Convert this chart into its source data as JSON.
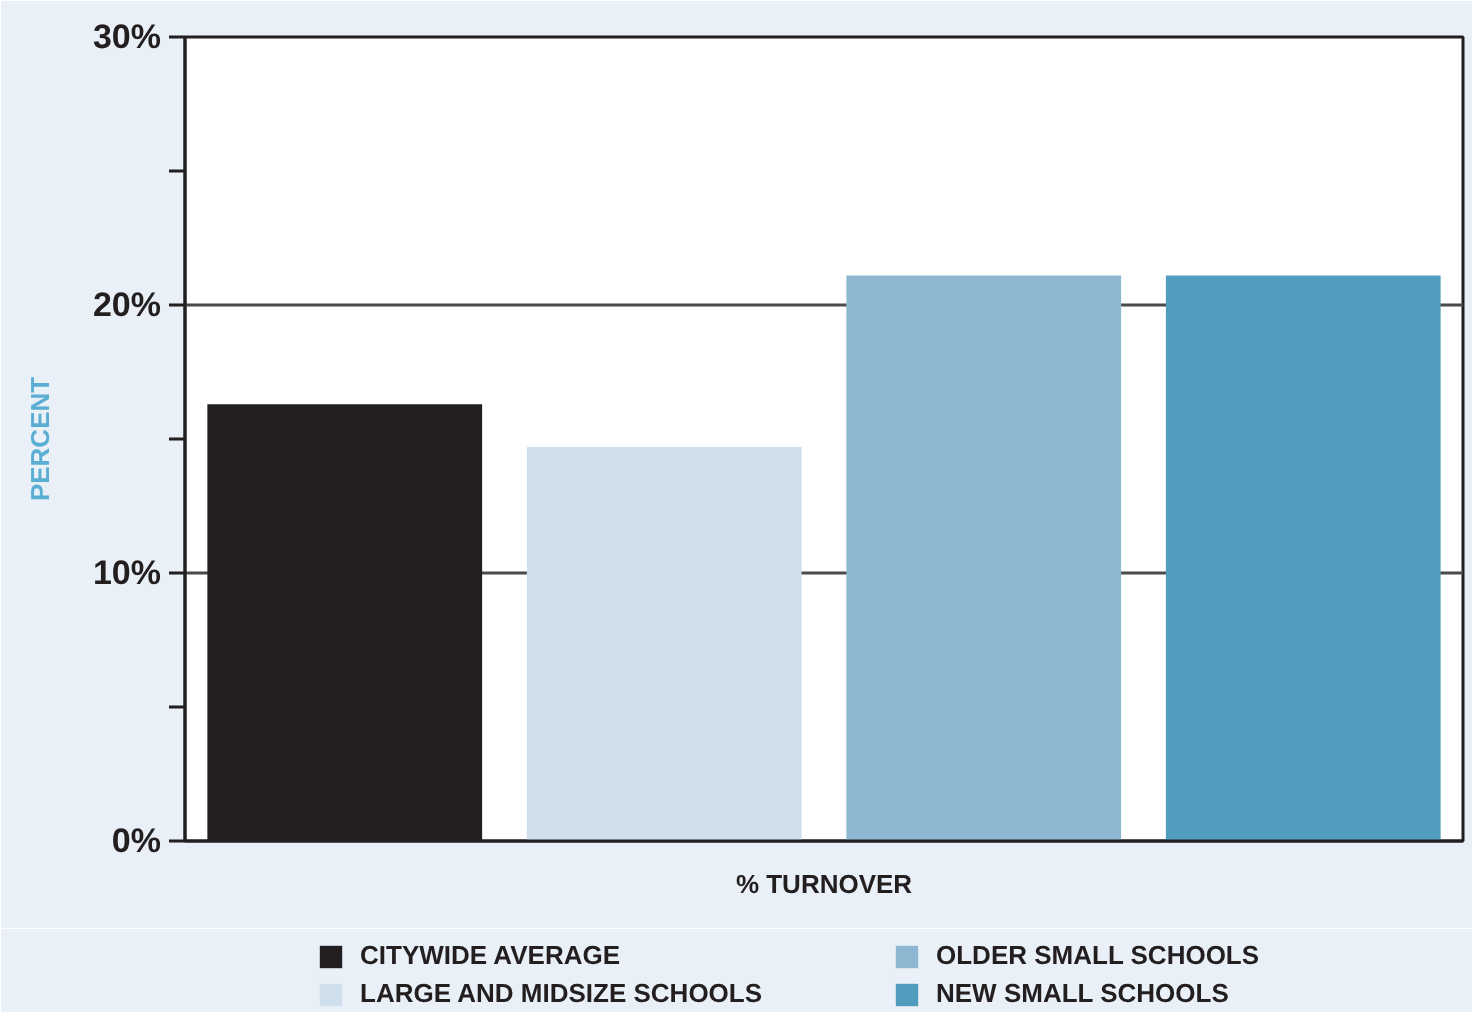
{
  "chart_data": {
    "type": "bar",
    "categories": [
      "% TURNOVER"
    ],
    "ylabel": "PERCENT",
    "series": [
      {
        "name": "CITYWIDE AVERAGE",
        "color": "#231f20",
        "values": [
          16.3
        ]
      },
      {
        "name": "LARGE AND MIDSIZE SCHOOLS",
        "color": "#cfe0ec",
        "values": [
          14.7
        ]
      },
      {
        "name": "OLDER SMALL SCHOOLS",
        "color": "#8eb8d2",
        "values": [
          21.1
        ]
      },
      {
        "name": "NEW SMALL SCHOOLS",
        "color": "#529dbf",
        "values": [
          21.1
        ]
      }
    ],
    "ylim": [
      0,
      30
    ],
    "yticks": [
      {
        "value": 0,
        "label": "0%"
      },
      {
        "value": 5,
        "label": null
      },
      {
        "value": 10,
        "label": "10%"
      },
      {
        "value": 15,
        "label": null
      },
      {
        "value": 20,
        "label": "20%"
      },
      {
        "value": 25,
        "label": null
      },
      {
        "value": 30,
        "label": "30%"
      }
    ],
    "grid": "y",
    "legend": "bottom"
  }
}
